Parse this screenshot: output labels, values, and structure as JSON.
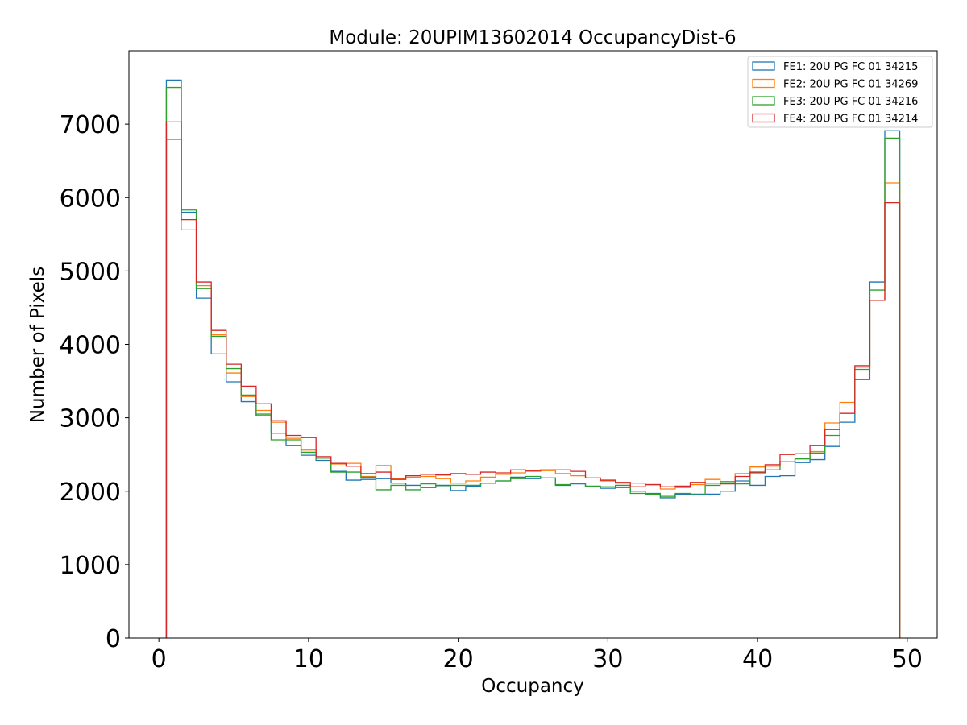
{
  "chart_data": {
    "type": "histogram-step",
    "title": "Module: 20UPIM13602014 OccupancyDist-6",
    "xlabel": "Occupancy",
    "ylabel": "Number of Pixels",
    "xlim": [
      -2,
      52
    ],
    "ylim": [
      0,
      8000
    ],
    "xticks": [
      0,
      10,
      20,
      30,
      40,
      50
    ],
    "yticks": [
      0,
      1000,
      2000,
      3000,
      4000,
      5000,
      6000,
      7000
    ],
    "bin_edges": [
      0.5,
      49.5
    ],
    "grid": false,
    "legend_position": "top-right",
    "series": [
      {
        "name": "FE1: 20U PG FC 01 34215",
        "color": "#1f77b4",
        "values": [
          7600,
          5800,
          4630,
          3870,
          3490,
          3220,
          3030,
          2790,
          2620,
          2490,
          2420,
          2270,
          2150,
          2160,
          2170,
          2110,
          2080,
          2050,
          2080,
          2010,
          2070,
          2110,
          2140,
          2190,
          2170,
          2180,
          2080,
          2100,
          2060,
          2040,
          2050,
          2000,
          1970,
          1910,
          1960,
          1960,
          1960,
          2000,
          2140,
          2080,
          2200,
          2210,
          2390,
          2430,
          2610,
          2940,
          3520,
          4850,
          6910
        ]
      },
      {
        "name": "FE2: 20U PG FC 01 34269",
        "color": "#ff7f0e",
        "values": [
          6790,
          5560,
          4800,
          4130,
          3610,
          3290,
          3100,
          2940,
          2720,
          2560,
          2450,
          2370,
          2380,
          2200,
          2350,
          2170,
          2190,
          2200,
          2170,
          2110,
          2140,
          2190,
          2230,
          2250,
          2270,
          2280,
          2240,
          2210,
          2180,
          2140,
          2110,
          2110,
          2090,
          2030,
          2050,
          2090,
          2160,
          2130,
          2240,
          2330,
          2340,
          2400,
          2440,
          2540,
          2930,
          3210,
          3690,
          4600,
          6200
        ]
      },
      {
        "name": "FE3: 20U PG FC 01 34216",
        "color": "#2ca02c",
        "values": [
          7500,
          5830,
          4760,
          4110,
          3670,
          3310,
          3050,
          2700,
          2700,
          2530,
          2450,
          2260,
          2260,
          2190,
          2020,
          2080,
          2020,
          2100,
          2060,
          2080,
          2080,
          2110,
          2140,
          2170,
          2200,
          2180,
          2090,
          2110,
          2070,
          2060,
          2080,
          1970,
          1960,
          1930,
          1970,
          1950,
          2080,
          2130,
          2100,
          2250,
          2290,
          2400,
          2440,
          2520,
          2760,
          3060,
          3660,
          4740,
          6810
        ]
      },
      {
        "name": "FE4: 20U PG FC 01 34214",
        "color": "#d62728",
        "values": [
          7030,
          5700,
          4850,
          4190,
          3730,
          3430,
          3190,
          2960,
          2760,
          2730,
          2470,
          2380,
          2340,
          2240,
          2260,
          2160,
          2210,
          2230,
          2220,
          2240,
          2230,
          2260,
          2250,
          2290,
          2280,
          2290,
          2290,
          2270,
          2180,
          2150,
          2120,
          2060,
          2090,
          2060,
          2070,
          2120,
          2110,
          2100,
          2200,
          2260,
          2360,
          2500,
          2510,
          2620,
          2840,
          3060,
          3710,
          4600,
          5930
        ]
      }
    ]
  }
}
